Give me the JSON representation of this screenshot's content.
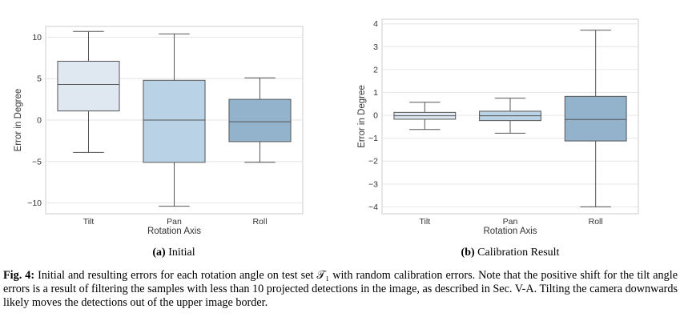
{
  "chart_data": [
    {
      "type": "box",
      "subcaption_label": "(a)",
      "subcaption_text": "Initial",
      "xlabel": "Rotation Axis",
      "ylabel": "Error in Degree",
      "ylim": [
        -11.3,
        11.3
      ],
      "yticks": [
        10,
        5,
        0,
        -5,
        -10
      ],
      "grid": true,
      "categories": [
        "Tilt",
        "Pan",
        "Roll"
      ],
      "boxes": [
        {
          "category": "Tilt",
          "whisker_low": -3.9,
          "q1": 1.1,
          "median": 4.3,
          "q3": 7.1,
          "whisker_high": 10.7,
          "color": "#dfe8f1"
        },
        {
          "category": "Pan",
          "whisker_low": -10.4,
          "q1": -5.1,
          "median": 0.0,
          "q3": 4.8,
          "whisker_high": 10.4,
          "color": "#b9d2e5"
        },
        {
          "category": "Roll",
          "whisker_low": -5.1,
          "q1": -2.6,
          "median": -0.2,
          "q3": 2.5,
          "whisker_high": 5.1,
          "color": "#93b3cd"
        }
      ]
    },
    {
      "type": "box",
      "subcaption_label": "(b)",
      "subcaption_text": "Calibration Result",
      "xlabel": "Rotation Axis",
      "ylabel": "Error in Degree",
      "ylim": [
        -4.3,
        4.2
      ],
      "yticks": [
        4,
        3,
        2,
        1,
        0,
        -1,
        -2,
        -3,
        -4
      ],
      "grid": true,
      "categories": [
        "Tilt",
        "Pan",
        "Roll"
      ],
      "boxes": [
        {
          "category": "Tilt",
          "whisker_low": -0.62,
          "q1": -0.17,
          "median": -0.02,
          "q3": 0.13,
          "whisker_high": 0.57,
          "color": "#dfe8f1"
        },
        {
          "category": "Pan",
          "whisker_low": -0.78,
          "q1": -0.23,
          "median": -0.02,
          "q3": 0.18,
          "whisker_high": 0.75,
          "color": "#b9d2e5"
        },
        {
          "category": "Roll",
          "whisker_low": -4.0,
          "q1": -1.12,
          "median": -0.18,
          "q3": 0.83,
          "whisker_high": 3.72,
          "color": "#93b3cd"
        }
      ]
    }
  ],
  "caption": {
    "label": "Fig. 4:",
    "text": "Initial and resulting errors for each rotation angle on test set 𝒯₁ with random calibration errors. Note that the positive shift for the tilt angle errors is a result of filtering the samples with less than 10 projected detections in the image, as described in Sec. V-A. Tilting the camera downwards likely moves the detections out of the upper image border."
  },
  "colors": {
    "grid": "#e6e6e6",
    "frame": "#cccccc",
    "box_edge": "#555555"
  }
}
